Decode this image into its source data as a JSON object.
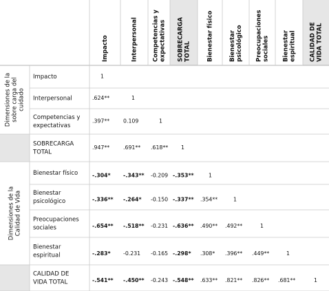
{
  "table": {
    "columns": [
      [
        "Impacto"
      ],
      [
        "Interpersonal"
      ],
      [
        "Competencias y",
        "expectativas"
      ],
      [
        "SOBRECARGA",
        "TOTAL"
      ],
      [
        "Bienestar físico"
      ],
      [
        "Bienestar",
        "psicológico"
      ],
      [
        "Preocupaciones",
        "sociales"
      ],
      [
        "Bienestar",
        "espiritual"
      ],
      [
        "CALIDAD DE",
        "VIDA TOTAL"
      ]
    ],
    "groups": [
      [
        "Dimensiones de la",
        "sobre carga del",
        "cuidado"
      ],
      [
        "Dimensiones de la",
        "Calidad de Vida"
      ]
    ],
    "rows": [
      {
        "label": [
          "Impacto"
        ],
        "cells": [
          "1"
        ]
      },
      {
        "label": [
          "Interpersonal"
        ],
        "cells": [
          ".624**",
          "1"
        ]
      },
      {
        "label": [
          "Competencias y",
          "expectativas"
        ],
        "cells": [
          ".397**",
          "0.109",
          "1"
        ]
      },
      {
        "label": [
          "SOBRECARGA",
          "TOTAL"
        ],
        "cells": [
          ".947**",
          ".691**",
          ".618**",
          "1"
        ]
      },
      {
        "label": [
          "Bienestar físico"
        ],
        "cells": [
          {
            "text": "-.304*",
            "bold": true
          },
          {
            "text": "-.343**",
            "bold": true
          },
          "-0.209",
          {
            "text": "-.353**",
            "bold": true
          },
          "1"
        ]
      },
      {
        "label": [
          "Bienestar",
          "psicológico"
        ],
        "cells": [
          {
            "text": "-.336**",
            "bold": true
          },
          {
            "text": "-.264*",
            "bold": true
          },
          "-0.150",
          {
            "text": "-.337**",
            "bold": true
          },
          ".354**",
          "1"
        ]
      },
      {
        "label": [
          "Preocupaciones",
          "sociales"
        ],
        "cells": [
          {
            "text": "-.654**",
            "bold": true
          },
          {
            "text": "-.518**",
            "bold": true
          },
          "-0.231",
          {
            "text": "-.636**",
            "bold": true
          },
          ".490**",
          ".492**",
          "1"
        ]
      },
      {
        "label": [
          "Bienestar",
          "espiritual"
        ],
        "cells": [
          {
            "text": "-.283*",
            "bold": true
          },
          "-0.231",
          "-0.165",
          {
            "text": "-.298*",
            "bold": true
          },
          ".308*",
          ".396**",
          ".449**",
          "1"
        ]
      },
      {
        "label": [
          "CALIDAD DE",
          "VIDA  TOTAL"
        ],
        "cells": [
          {
            "text": "-.541**",
            "bold": true
          },
          {
            "text": "-.450**",
            "bold": true
          },
          "-0.243",
          {
            "text": "-.548**",
            "bold": true
          },
          ".633**",
          ".821**",
          ".826**",
          ".681**",
          "1"
        ]
      }
    ]
  }
}
